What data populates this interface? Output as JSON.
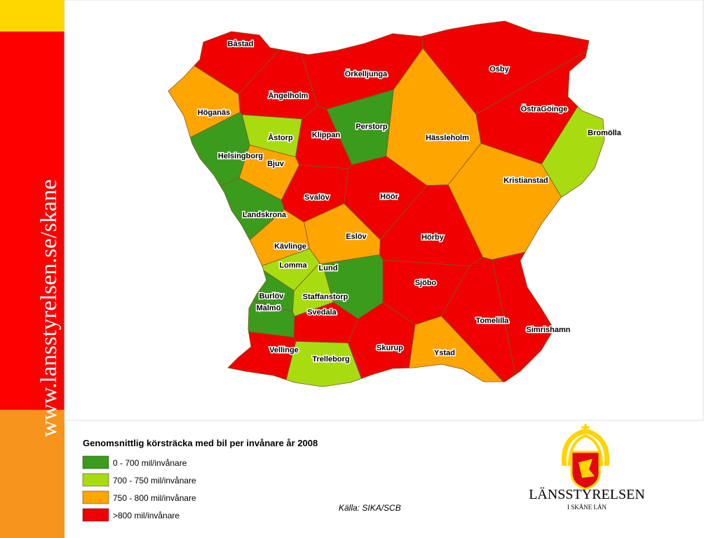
{
  "sidebar": {
    "url": "www.lansstyrelsen.se/skane"
  },
  "map": {
    "municipalities": [
      {
        "name": "Båstad",
        "class": 3
      },
      {
        "name": "Örkelljunga",
        "class": 3
      },
      {
        "name": "Osby",
        "class": 3
      },
      {
        "name": "Ängelholm",
        "class": 3
      },
      {
        "name": "Höganäs",
        "class": 2
      },
      {
        "name": "ÖstraGöinge",
        "class": 3
      },
      {
        "name": "Perstorp",
        "class": 0
      },
      {
        "name": "Bromölla",
        "class": 1
      },
      {
        "name": "Åstorp",
        "class": 1
      },
      {
        "name": "Klippan",
        "class": 3
      },
      {
        "name": "Hässleholm",
        "class": 2
      },
      {
        "name": "Helsingborg",
        "class": 0
      },
      {
        "name": "Bjuv",
        "class": 2
      },
      {
        "name": "Kristianstad",
        "class": 2
      },
      {
        "name": "Svalöv",
        "class": 3
      },
      {
        "name": "Höör",
        "class": 3
      },
      {
        "name": "Landskrona",
        "class": 0
      },
      {
        "name": "Eslöv",
        "class": 2
      },
      {
        "name": "Hörby",
        "class": 3
      },
      {
        "name": "Kävlinge",
        "class": 2
      },
      {
        "name": "Lomma",
        "class": 1
      },
      {
        "name": "Lund",
        "class": 0
      },
      {
        "name": "Sjöbo",
        "class": 3
      },
      {
        "name": "Burlöv",
        "class": 0
      },
      {
        "name": "Staffanstorp",
        "class": 1
      },
      {
        "name": "Malmö",
        "class": 0
      },
      {
        "name": "Svedala",
        "class": 3
      },
      {
        "name": "Tomelilla",
        "class": 3
      },
      {
        "name": "Simrishamn",
        "class": 3
      },
      {
        "name": "Skurup",
        "class": 3
      },
      {
        "name": "Vellinge",
        "class": 3
      },
      {
        "name": "Trelleborg",
        "class": 1
      },
      {
        "name": "Ystad",
        "class": 2
      }
    ]
  },
  "legend": {
    "title": "Genomsnittlig körsträcka med bil per invånare år 2008",
    "items": [
      {
        "label": "0 - 700 mil/invånare",
        "color": "#3b9b1c"
      },
      {
        "label": "700 - 750 mil/invånare",
        "color": "#a8dc10"
      },
      {
        "label": "750 - 800 mil/invånare",
        "color": "#ffa500"
      },
      {
        "label": ">800 mil/invånare",
        "color": "#f00000"
      }
    ]
  },
  "source": "Källa: SIKA/SCB",
  "logo": {
    "name": "LÄNSSTYRELSEN",
    "subtitle": "I SKÅNE LÄN"
  }
}
